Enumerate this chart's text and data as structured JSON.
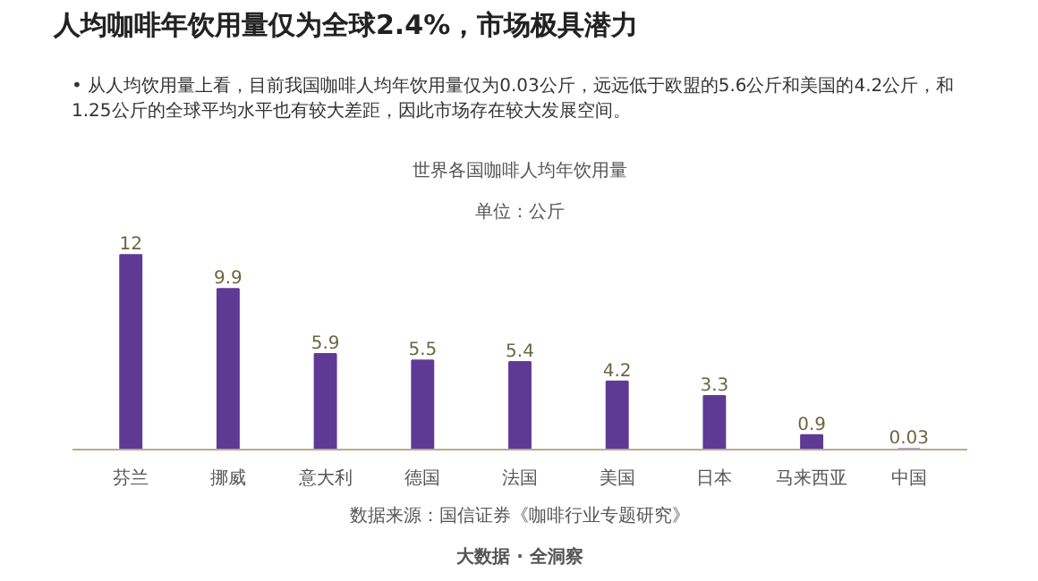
{
  "chart_data": {
    "type": "bar",
    "title": "人均咖啡年饮用量仅为全球2.4%，市场极具潜力",
    "subtitle": "世界各国咖啡人均年饮用量",
    "ylabel": "单位：公斤",
    "categories": [
      "芬兰",
      "挪威",
      "意大利",
      "德国",
      "法国",
      "美国",
      "日本",
      "马来西亚",
      "中国"
    ],
    "values": [
      12,
      9.9,
      5.9,
      5.5,
      5.4,
      4.2,
      3.3,
      0.9,
      0.03
    ],
    "color": "#5f3a95",
    "data_labels": true,
    "annotations": [
      "• 从人均饮用量上看，目前我国咖啡人均年饮用量仅为0.03公斤，远远低于欧盟的5.6公斤和美国的4.2公斤，和1.25公斤的全球平均水平也有较大差距，因此市场存在较大发展空间。",
      "数据来源：国信证券《咖啡行业专题研究》",
      "大数据 · 全洞察"
    ]
  }
}
